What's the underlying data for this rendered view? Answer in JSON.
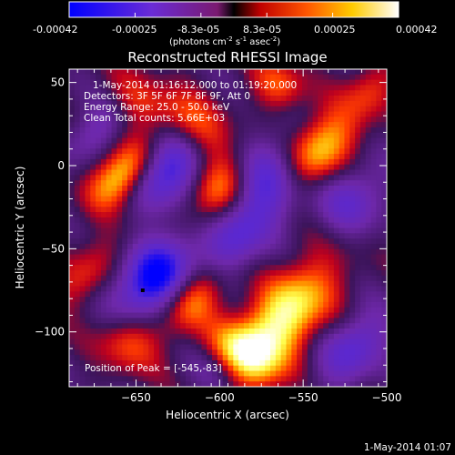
{
  "colorbar": {
    "tick_labels": [
      "-0.00042",
      "-0.00025",
      "-8.3e-05",
      "8.3e-05",
      "0.00025",
      "0.00042"
    ],
    "unit_label": "(photons cm",
    "unit_sup1": "-2",
    "unit_mid": " s",
    "unit_sup2": "-1",
    "unit_end": " asec",
    "unit_sup3": "-2",
    "unit_close": ")",
    "range": [
      -0.00042,
      0.00042
    ]
  },
  "annotations": {
    "time_range": "1-May-2014 01:16:12.000 to 01:19:20.000",
    "detectors": "Detectors: 3F 5F 6F 7F 8F 9F, Att 0",
    "energy": "Energy Range: 25.0 - 50.0 keV",
    "clean": "Clean    Total counts: 5.66E+03",
    "peak": "Position of Peak = [-545,-83]",
    "footer_date": "1-May-2014 01:07"
  },
  "chart_data": {
    "type": "heatmap",
    "title": "Reconstructed RHESSI Image",
    "xlabel": "Heliocentric X (arcsec)",
    "ylabel": "Heliocentric Y (arcsec)",
    "xlim": [
      -690,
      -500
    ],
    "ylim": [
      -133,
      58
    ],
    "x_ticks": [
      -650,
      -600,
      -550,
      -500
    ],
    "x_tick_labels": [
      "−650",
      "−600",
      "−550",
      "−500"
    ],
    "y_ticks": [
      50,
      0,
      -50,
      -100
    ],
    "y_tick_labels": [
      "50",
      "0",
      "−50",
      "−100"
    ],
    "colormap": [
      "#0000ff",
      "#9a3bd1",
      "#e8001a",
      "#ff8000",
      "#ffff40",
      "#ffffff"
    ],
    "peak_position": [
      -545,
      -83
    ],
    "blobs": [
      {
        "x": -658,
        "y": -5,
        "v": 0.95,
        "sx": 10,
        "sy": 16
      },
      {
        "x": -640,
        "y": -68,
        "v": -0.95,
        "sx": 13,
        "sy": 22
      },
      {
        "x": -630,
        "y": 0,
        "v": -0.85,
        "sx": 14,
        "sy": 20
      },
      {
        "x": -615,
        "y": 22,
        "v": 0.7,
        "sx": 18,
        "sy": 12
      },
      {
        "x": -650,
        "y": 40,
        "v": 0.35,
        "sx": 14,
        "sy": 10
      },
      {
        "x": -600,
        "y": -15,
        "v": 0.75,
        "sx": 12,
        "sy": 18
      },
      {
        "x": -590,
        "y": -45,
        "v": -0.5,
        "sx": 12,
        "sy": 20
      },
      {
        "x": -575,
        "y": -8,
        "v": -0.7,
        "sx": 16,
        "sy": 22
      },
      {
        "x": -540,
        "y": 10,
        "v": 0.85,
        "sx": 12,
        "sy": 18
      },
      {
        "x": -520,
        "y": -20,
        "v": -0.5,
        "sx": 14,
        "sy": 16
      },
      {
        "x": -560,
        "y": -90,
        "v": 0.95,
        "sx": 14,
        "sy": 26
      },
      {
        "x": -585,
        "y": -115,
        "v": 0.85,
        "sx": 16,
        "sy": 12
      },
      {
        "x": -615,
        "y": -80,
        "v": 0.6,
        "sx": 10,
        "sy": 16
      },
      {
        "x": -600,
        "y": -125,
        "v": -0.4,
        "sx": 12,
        "sy": 10
      },
      {
        "x": -655,
        "y": -105,
        "v": 0.55,
        "sx": 14,
        "sy": 12
      },
      {
        "x": -680,
        "y": -65,
        "v": 0.35,
        "sx": 10,
        "sy": 20
      },
      {
        "x": -520,
        "y": -110,
        "v": -0.6,
        "sx": 12,
        "sy": 18
      },
      {
        "x": -510,
        "y": 45,
        "v": 0.4,
        "sx": 10,
        "sy": 12
      },
      {
        "x": -565,
        "y": 48,
        "v": 0.5,
        "sx": 12,
        "sy": 10
      },
      {
        "x": -675,
        "y": 20,
        "v": -0.35,
        "sx": 10,
        "sy": 16
      }
    ]
  }
}
